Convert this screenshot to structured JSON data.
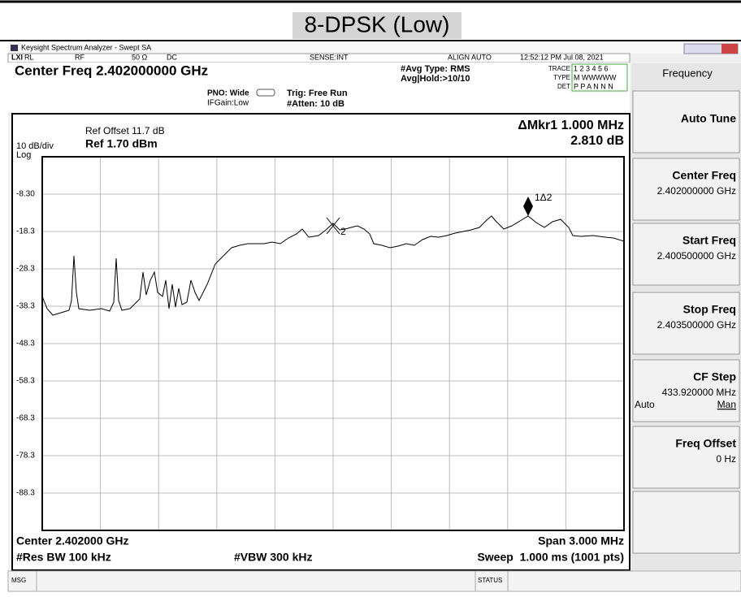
{
  "title": "8-DPSK (Low)",
  "window": {
    "title": "Keysight Spectrum Analyzer - Swept SA"
  },
  "status_row": {
    "rl": "RL",
    "rf": "RF",
    "impedance": "50 Ω",
    "coupling": "DC",
    "sense": "SENSE:INT",
    "align": "ALIGN AUTO",
    "datetime": "12:52:12 PM Jul 08, 2021"
  },
  "settings": {
    "center_freq": "Center Freq 2.402000000 GHz",
    "pno": "PNO: Wide",
    "ifgain": "IFGain:Low",
    "trig": "Trig: Free Run",
    "atten": "#Atten: 10 dB",
    "avg_type": "#Avg Type: RMS",
    "avg_hold": "Avg|Hold:>10/10",
    "trace_label": "TRACE",
    "trace_values": "1 2 3 4 5 6",
    "type_label": "TYPE",
    "type_values": "M WWWWW",
    "det_label": "DET",
    "det_values": "P P A N N N"
  },
  "graph": {
    "ref_offset": "Ref Offset 11.7 dB",
    "scale": "10 dB/div",
    "ref_level": "Ref 1.70 dBm",
    "log": "Log",
    "delta_marker": "ΔMkr1 1.000 MHz",
    "delta_value": "2.810 dB",
    "y_labels": [
      "-8.30",
      "-18.3",
      "-28.3",
      "-38.3",
      "-48.3",
      "-58.3",
      "-68.3",
      "-78.3",
      "-88.3"
    ],
    "markers": [
      "1Δ2",
      "2"
    ],
    "center": "Center 2.402000 GHz",
    "span": "Span 3.000 MHz",
    "rbw": "#Res BW 100 kHz",
    "vbw": "#VBW 300 kHz",
    "sweep": "Sweep  1.000 ms (1001 pts)"
  },
  "footer": {
    "msg": "MSG",
    "status": "STATUS"
  },
  "softkeys": {
    "menu": "Frequency",
    "items": [
      {
        "label": "Auto Tune"
      },
      {
        "label": "Center Freq",
        "value": "2.402000000 GHz"
      },
      {
        "label": "Start Freq",
        "value": "2.400500000 GHz"
      },
      {
        "label": "Stop Freq",
        "value": "2.403500000 GHz"
      },
      {
        "label": "CF Step",
        "value": "433.920000 MHz",
        "options": [
          "Auto",
          "Man"
        ]
      },
      {
        "label": "Freq Offset",
        "value": "0 Hz"
      }
    ]
  }
}
